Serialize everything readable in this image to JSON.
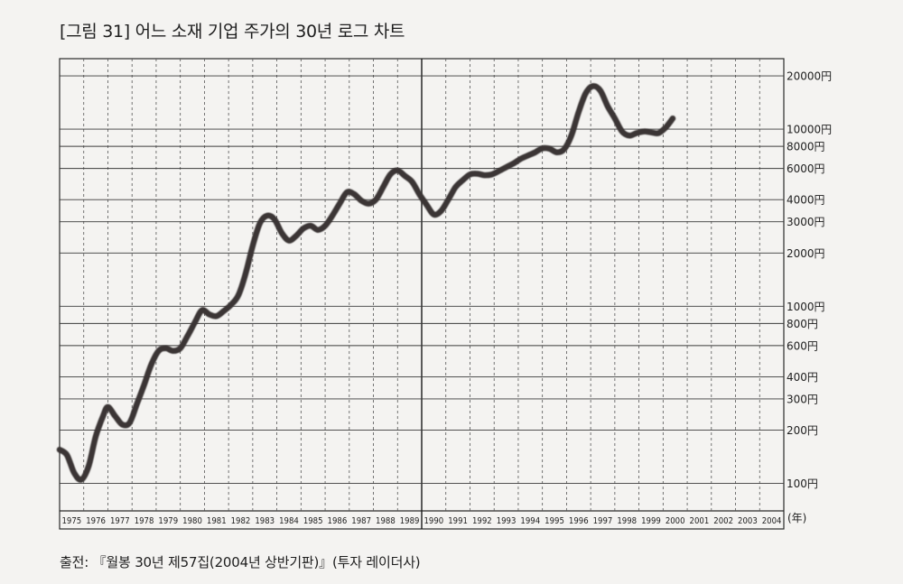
{
  "title": "[그림 31] 어느 소재 기업 주가의 30년 로그 차트",
  "source": "출전: 『월봉 30년 제57집(2004년 상반기판)』(투자 레이더사)",
  "chart_data": {
    "type": "line",
    "title": "[그림 31] 어느 소재 기업 주가의 30년 로그 차트",
    "xlabel": "",
    "ylabel": "",
    "x_unit": "(年)",
    "yscale": "log",
    "ylim": [
      70,
      25000
    ],
    "xlim": [
      1975,
      2005
    ],
    "grid": true,
    "categories": [
      "1975",
      "1976",
      "1977",
      "1978",
      "1979",
      "1980",
      "1981",
      "1982",
      "1983",
      "1984",
      "1985",
      "1986",
      "1987",
      "1988",
      "1989",
      "1990",
      "1991",
      "1992",
      "1993",
      "1994",
      "1995",
      "1996",
      "1997",
      "1998",
      "1999",
      "2000",
      "2001",
      "2002",
      "2003",
      "2004"
    ],
    "y_ticks": [
      {
        "value": 100,
        "label": "100円"
      },
      {
        "value": 200,
        "label": "200円"
      },
      {
        "value": 300,
        "label": "300円"
      },
      {
        "value": 400,
        "label": "400円"
      },
      {
        "value": 600,
        "label": "600円"
      },
      {
        "value": 800,
        "label": "800円"
      },
      {
        "value": 1000,
        "label": "1000円"
      },
      {
        "value": 2000,
        "label": "2000円"
      },
      {
        "value": 3000,
        "label": "3000円"
      },
      {
        "value": 4000,
        "label": "4000円"
      },
      {
        "value": 6000,
        "label": "6000円"
      },
      {
        "value": 8000,
        "label": "8000円"
      },
      {
        "value": 10000,
        "label": "10000円"
      },
      {
        "value": 20000,
        "label": "20000円"
      }
    ],
    "series": [
      {
        "name": "",
        "color": "#3a3636",
        "points": [
          [
            1975.0,
            155
          ],
          [
            1975.3,
            145
          ],
          [
            1975.6,
            115
          ],
          [
            1975.9,
            105
          ],
          [
            1976.2,
            125
          ],
          [
            1976.5,
            185
          ],
          [
            1976.8,
            240
          ],
          [
            1977.0,
            270
          ],
          [
            1977.3,
            240
          ],
          [
            1977.6,
            215
          ],
          [
            1977.9,
            220
          ],
          [
            1978.2,
            280
          ],
          [
            1978.5,
            360
          ],
          [
            1978.8,
            470
          ],
          [
            1979.1,
            560
          ],
          [
            1979.4,
            580
          ],
          [
            1979.7,
            560
          ],
          [
            1980.0,
            580
          ],
          [
            1980.3,
            680
          ],
          [
            1980.6,
            810
          ],
          [
            1980.9,
            950
          ],
          [
            1981.2,
            900
          ],
          [
            1981.5,
            880
          ],
          [
            1981.8,
            940
          ],
          [
            1982.1,
            1020
          ],
          [
            1982.4,
            1150
          ],
          [
            1982.7,
            1520
          ],
          [
            1983.0,
            2200
          ],
          [
            1983.3,
            2950
          ],
          [
            1983.6,
            3250
          ],
          [
            1983.9,
            3100
          ],
          [
            1984.2,
            2600
          ],
          [
            1984.5,
            2350
          ],
          [
            1984.8,
            2500
          ],
          [
            1985.1,
            2750
          ],
          [
            1985.4,
            2850
          ],
          [
            1985.7,
            2700
          ],
          [
            1986.0,
            2850
          ],
          [
            1986.3,
            3250
          ],
          [
            1986.6,
            3800
          ],
          [
            1986.9,
            4400
          ],
          [
            1987.2,
            4300
          ],
          [
            1987.5,
            3950
          ],
          [
            1987.8,
            3800
          ],
          [
            1988.1,
            4000
          ],
          [
            1988.4,
            4700
          ],
          [
            1988.7,
            5550
          ],
          [
            1989.0,
            5850
          ],
          [
            1989.3,
            5450
          ],
          [
            1989.6,
            5050
          ],
          [
            1989.9,
            4300
          ],
          [
            1990.2,
            3750
          ],
          [
            1990.5,
            3300
          ],
          [
            1990.8,
            3450
          ],
          [
            1991.1,
            4000
          ],
          [
            1991.4,
            4700
          ],
          [
            1991.7,
            5150
          ],
          [
            1992.0,
            5550
          ],
          [
            1992.3,
            5600
          ],
          [
            1992.6,
            5500
          ],
          [
            1992.9,
            5550
          ],
          [
            1993.2,
            5800
          ],
          [
            1993.5,
            6100
          ],
          [
            1993.8,
            6400
          ],
          [
            1994.1,
            6800
          ],
          [
            1994.4,
            7100
          ],
          [
            1994.7,
            7400
          ],
          [
            1995.0,
            7800
          ],
          [
            1995.3,
            7750
          ],
          [
            1995.6,
            7400
          ],
          [
            1995.9,
            7700
          ],
          [
            1996.2,
            9200
          ],
          [
            1996.5,
            12500
          ],
          [
            1996.8,
            16000
          ],
          [
            1997.1,
            17500
          ],
          [
            1997.4,
            16500
          ],
          [
            1997.7,
            13500
          ],
          [
            1998.0,
            11500
          ],
          [
            1998.3,
            9700
          ],
          [
            1998.6,
            9200
          ],
          [
            1998.9,
            9500
          ],
          [
            1999.2,
            9700
          ],
          [
            1999.5,
            9600
          ],
          [
            1999.8,
            9500
          ],
          [
            2000.1,
            10200
          ],
          [
            2000.4,
            11500
          ]
        ]
      }
    ]
  }
}
